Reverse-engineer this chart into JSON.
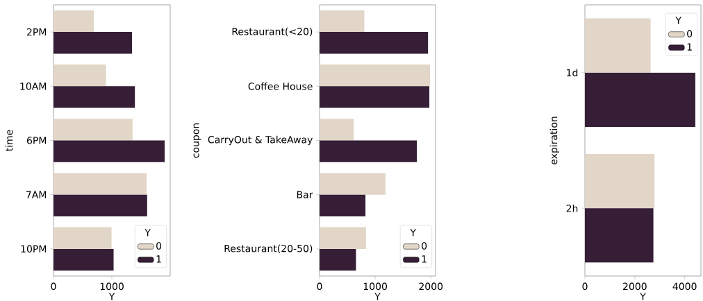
{
  "chart_data": [
    {
      "type": "bar",
      "orientation": "horizontal",
      "categories": [
        "2PM",
        "10AM",
        "6PM",
        "7AM",
        "10PM"
      ],
      "xlabel": "Y",
      "ylabel": "time",
      "legend_title": "Y",
      "legend": "bottom right",
      "xlim": [
        0,
        2000
      ],
      "xticks": [
        0,
        1000
      ],
      "series": [
        {
          "name": "0",
          "color": "#e2d6c8",
          "values": [
            690,
            900,
            1355,
            1595,
            995
          ]
        },
        {
          "name": "1",
          "color": "#361e36",
          "values": [
            1345,
            1395,
            1905,
            1605,
            1030
          ]
        }
      ]
    },
    {
      "type": "bar",
      "orientation": "horizontal",
      "categories": [
        "Restaurant(<20)",
        "Coffee House",
        "CarryOut & TakeAway",
        "Bar",
        "Restaurant(20-50)"
      ],
      "xlabel": "Y",
      "ylabel": "coupon",
      "legend_title": "Y",
      "legend": "bottom right",
      "xlim": [
        0,
        2085
      ],
      "xticks": [
        0,
        1000,
        2000
      ],
      "series": [
        {
          "name": "0",
          "color": "#e2d6c8",
          "values": [
            805,
            1985,
            615,
            1185,
            835
          ]
        },
        {
          "name": "1",
          "color": "#361e36",
          "values": [
            1950,
            1975,
            1750,
            825,
            655
          ]
        }
      ]
    },
    {
      "type": "bar",
      "orientation": "horizontal",
      "categories": [
        "1d",
        "2h"
      ],
      "xlabel": "Y",
      "ylabel": "expiration",
      "legend_title": "Y",
      "legend": "top right",
      "xlim": [
        0,
        4650
      ],
      "xticks": [
        0,
        2000,
        4000
      ],
      "series": [
        {
          "name": "0",
          "color": "#e2d6c8",
          "values": [
            2635,
            2790
          ]
        },
        {
          "name": "1",
          "color": "#361e36",
          "values": [
            4425,
            2745
          ]
        }
      ]
    }
  ]
}
